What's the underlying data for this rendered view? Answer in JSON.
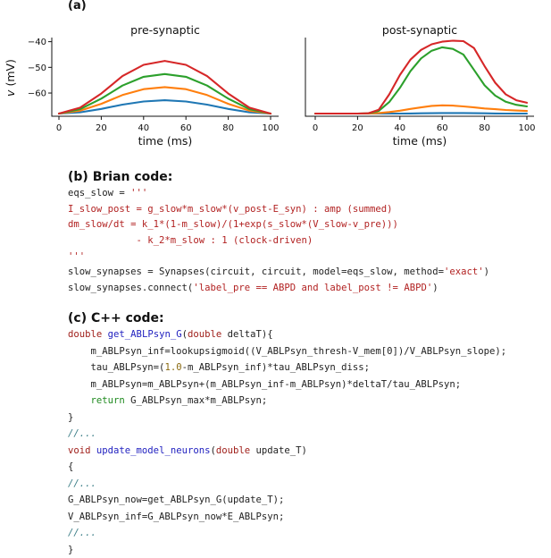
{
  "panel_a_label": "(a)",
  "chart_data": [
    {
      "type": "line",
      "title": "pre-synaptic",
      "xlabel": "time (ms)",
      "ylabel": "v (mV)",
      "xlim": [
        0,
        100
      ],
      "ylim": [
        -68,
        -37
      ],
      "xticks": [
        0,
        20,
        40,
        60,
        80,
        100
      ],
      "yticks": [
        -60,
        -50,
        -40
      ],
      "grid": false,
      "x": [
        0,
        10,
        20,
        30,
        40,
        50,
        60,
        70,
        80,
        90,
        100
      ],
      "series": [
        {
          "color": "#1f77b4",
          "values": [
            -68,
            -67.5,
            -66.2,
            -64.5,
            -63.3,
            -62.8,
            -63.3,
            -64.5,
            -66.2,
            -67.5,
            -68
          ]
        },
        {
          "color": "#ff7f0e",
          "values": [
            -68,
            -66.9,
            -64.2,
            -60.8,
            -58.5,
            -57.7,
            -58.5,
            -60.8,
            -64.2,
            -66.9,
            -68
          ]
        },
        {
          "color": "#2ca02c",
          "values": [
            -68,
            -66.3,
            -62.2,
            -57.1,
            -53.7,
            -52.6,
            -53.7,
            -57.1,
            -62.2,
            -66.3,
            -68
          ]
        },
        {
          "color": "#d62728",
          "values": [
            -68,
            -65.7,
            -60.2,
            -53.4,
            -49.0,
            -47.5,
            -49.0,
            -53.4,
            -60.2,
            -65.7,
            -68
          ]
        }
      ]
    },
    {
      "type": "line",
      "title": "post-synaptic",
      "xlabel": "time (ms)",
      "ylabel": "",
      "xlim": [
        0,
        100
      ],
      "ylim": [
        -68,
        -37
      ],
      "xticks": [
        0,
        20,
        40,
        60,
        80,
        100
      ],
      "yticks": [],
      "grid": false,
      "x": [
        0,
        10,
        20,
        25,
        30,
        35,
        40,
        45,
        50,
        55,
        60,
        65,
        70,
        75,
        80,
        85,
        90,
        95,
        100
      ],
      "series": [
        {
          "color": "#1f77b4",
          "values": [
            -68,
            -68,
            -68,
            -68,
            -68,
            -68,
            -68,
            -67.95,
            -67.9,
            -67.85,
            -67.8,
            -67.8,
            -67.8,
            -67.85,
            -67.9,
            -67.95,
            -68,
            -68,
            -68
          ]
        },
        {
          "color": "#ff7f0e",
          "values": [
            -68,
            -68,
            -68,
            -68,
            -67.8,
            -67.4,
            -66.9,
            -66.2,
            -65.6,
            -65.0,
            -64.8,
            -64.9,
            -65.2,
            -65.6,
            -66.0,
            -66.3,
            -66.6,
            -66.8,
            -67.0
          ]
        },
        {
          "color": "#2ca02c",
          "values": [
            -68,
            -68,
            -68,
            -67.9,
            -67.0,
            -63.5,
            -58.0,
            -51.5,
            -46.5,
            -43.5,
            -42.2,
            -42.8,
            -45.0,
            -51.0,
            -57.0,
            -61.0,
            -63.4,
            -64.6,
            -65.2
          ]
        },
        {
          "color": "#d62728",
          "values": [
            -68,
            -68,
            -68,
            -67.9,
            -66.5,
            -60.5,
            -53.0,
            -47.0,
            -43.2,
            -41.0,
            -40.0,
            -39.6,
            -39.8,
            -42.5,
            -49.5,
            -56.0,
            -60.5,
            -62.8,
            -63.8
          ]
        }
      ]
    }
  ],
  "sections": {
    "brian_title": "(b) Brian code:",
    "brian_lines": [
      [
        {
          "t": "eqs_slow = ",
          "c": ""
        },
        {
          "t": "'''",
          "c": "str"
        }
      ],
      [
        {
          "t": "I_slow_post = g_slow*m_slow*(v_post-E_syn) : amp (summed)",
          "c": "str"
        }
      ],
      [
        {
          "t": "dm_slow/dt = k_1*(1-m_slow)/(1+exp(s_slow*(V_slow-v_pre)))",
          "c": "str"
        }
      ],
      [
        {
          "t": "            - k_2*m_slow : 1 (clock-driven)",
          "c": "str"
        }
      ],
      [
        {
          "t": "'''",
          "c": "str"
        }
      ],
      [
        {
          "t": "slow_synapses = Synapses(circuit, circuit, model=eqs_slow, method=",
          "c": ""
        },
        {
          "t": "'exact'",
          "c": "str"
        },
        {
          "t": ")",
          "c": ""
        }
      ],
      [
        {
          "t": "slow_synapses.connect(",
          "c": ""
        },
        {
          "t": "'label_pre == ABPD and label_post != ABPD'",
          "c": "str"
        },
        {
          "t": ")",
          "c": ""
        }
      ]
    ],
    "cpp_title": "(c) C++ code:",
    "cpp_lines": [
      [
        {
          "t": "double",
          "c": "kw"
        },
        {
          "t": " ",
          "c": ""
        },
        {
          "t": "get_ABLPsyn_G",
          "c": "fn"
        },
        {
          "t": "(",
          "c": ""
        },
        {
          "t": "double",
          "c": "kw"
        },
        {
          "t": " deltaT){",
          "c": ""
        }
      ],
      [
        {
          "t": "    m_ABLPsyn_inf=lookupsigmoid((V_ABLPsyn_thresh-V_mem[0])/V_ABLPsyn_slope);",
          "c": ""
        }
      ],
      [
        {
          "t": "    tau_ABLPsyn=(",
          "c": ""
        },
        {
          "t": "1.0",
          "c": "num"
        },
        {
          "t": "-m_ABLPsyn_inf)*tau_ABLPsyn_diss;",
          "c": ""
        }
      ],
      [
        {
          "t": "    m_ABLPsyn=m_ABLPsyn+(m_ABLPsyn_inf-m_ABLPsyn)*deltaT/tau_ABLPsyn;",
          "c": ""
        }
      ],
      [
        {
          "t": "    ",
          "c": ""
        },
        {
          "t": "return",
          "c": "ret"
        },
        {
          "t": " G_ABLPsyn_max*m_ABLPsyn;",
          "c": ""
        }
      ],
      [
        {
          "t": "}",
          "c": ""
        }
      ],
      [
        {
          "t": "//...",
          "c": "cmt"
        }
      ],
      [
        {
          "t": "void",
          "c": "kw"
        },
        {
          "t": " ",
          "c": ""
        },
        {
          "t": "update_model_neurons",
          "c": "fn"
        },
        {
          "t": "(",
          "c": ""
        },
        {
          "t": "double",
          "c": "kw"
        },
        {
          "t": " update_T)",
          "c": ""
        }
      ],
      [
        {
          "t": "{",
          "c": ""
        }
      ],
      [
        {
          "t": "//...",
          "c": "cmt"
        }
      ],
      [
        {
          "t": "G_ABLPsyn_now=get_ABLPsyn_G(update_T);",
          "c": ""
        }
      ],
      [
        {
          "t": "V_ABLPsyn_inf=G_ABLPsyn_now*E_ABLPsyn;",
          "c": ""
        }
      ],
      [
        {
          "t": "//...",
          "c": "cmt"
        }
      ],
      [
        {
          "t": "}",
          "c": ""
        }
      ]
    ]
  }
}
